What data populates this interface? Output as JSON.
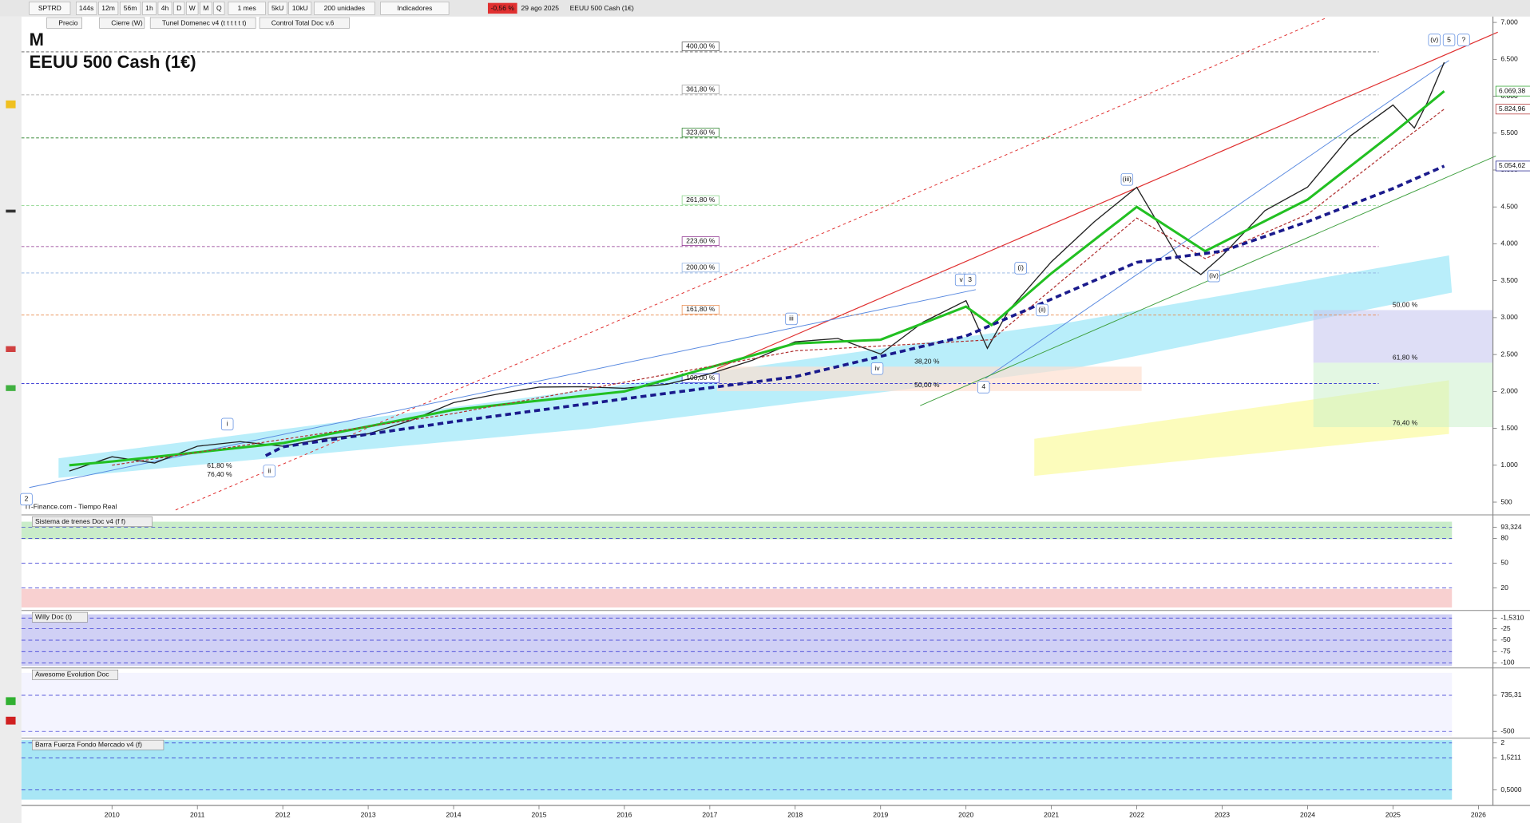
{
  "toolbar": {
    "symbol": "SPTRD",
    "timeframes": [
      "144s",
      "12m",
      "56m",
      "1h",
      "4h",
      "D",
      "W",
      "M",
      "Q"
    ],
    "period": "1 mes",
    "units": [
      "5kU",
      "10kU"
    ],
    "amount": "200 unidades",
    "indicators": "Indicadores",
    "change": "-0,56 %",
    "date": "29 ago 2025",
    "instrument": "EEUU 500 Cash (1€)"
  },
  "legend_bar": [
    "Precio",
    "Cierre (W)",
    "Tunel Domenec v4 (t t t t t t)",
    "Control Total Doc v.6"
  ],
  "chart_data": {
    "type": "line",
    "timeframe": "M",
    "title": "EEUU 500 Cash (1€)",
    "source": "IT-Finance.com - Tiempo Real",
    "series": [
      {
        "color": "#222222",
        "x": [
          2009.5,
          2010,
          2010.5,
          2011,
          2011.5,
          2012,
          2012.5,
          2013,
          2013.5,
          2014,
          2014.5,
          2015,
          2015.5,
          2016,
          2016.5,
          2017,
          2017.5,
          2018,
          2018.5,
          2019,
          2019.5,
          2020,
          2020.25,
          2020.5,
          2021,
          2021.5,
          2022,
          2022.5,
          2022.75,
          2023,
          2023.5,
          2024,
          2024.5,
          2025,
          2025.25,
          2025.4,
          2025.6
        ],
        "values": [
          920,
          1115,
          1030,
          1257,
          1320,
          1257,
          1362,
          1426,
          1606,
          1848,
          1960,
          2058,
          2063,
          2043,
          2098,
          2238,
          2423,
          2673,
          2718,
          2506,
          2941,
          3230,
          2584,
          3100,
          3756,
          4297,
          4766,
          3785,
          3585,
          3839,
          4450,
          4770,
          5460,
          5881,
          5569,
          5911,
          6460
        ]
      },
      {
        "color": "#22c022",
        "x": [
          2009.5,
          2010,
          2012,
          2014,
          2016,
          2018,
          2019,
          2020,
          2020.3,
          2021,
          2022,
          2022.8,
          2024,
          2025,
          2025.6
        ],
        "values": [
          1000,
          1050,
          1300,
          1750,
          2000,
          2650,
          2700,
          3150,
          2900,
          3600,
          4500,
          3900,
          4600,
          5500,
          6069
        ]
      },
      {
        "color": "#b03030",
        "x": [
          2010,
          2014,
          2018,
          2020.3,
          2022,
          2022.8,
          2024,
          2025,
          2025.6
        ],
        "values": [
          1000,
          1700,
          2550,
          2700,
          4350,
          3800,
          4400,
          5300,
          5825
        ]
      },
      {
        "color": "#1a1a8c",
        "x": [
          2011.8,
          2012,
          2014,
          2016,
          2018,
          2020,
          2022,
          2023,
          2024,
          2025,
          2025.6
        ],
        "values": [
          1130,
          1250,
          1590,
          1900,
          2200,
          2750,
          3750,
          3900,
          4300,
          4750,
          5054
        ]
      }
    ],
    "xlim": [
      2008.94,
      2026.17
    ],
    "xticks": [
      2010,
      2011,
      2012,
      2013,
      2014,
      2015,
      2016,
      2017,
      2018,
      2019,
      2020,
      2021,
      2022,
      2023,
      2024,
      2025,
      2026
    ],
    "ylim": [
      367,
      7066
    ],
    "yticks": [
      {
        "value": 7000,
        "label": "7.000"
      },
      {
        "value": 6500,
        "label": "6.500"
      },
      {
        "value": 6000,
        "label": "6.000"
      },
      {
        "value": 5500,
        "label": "5.500"
      },
      {
        "value": 5000,
        "label": "5.000"
      },
      {
        "value": 4500,
        "label": "4.500"
      },
      {
        "value": 4000,
        "label": "4.000"
      },
      {
        "value": 3500,
        "label": "3.500"
      },
      {
        "value": 3000,
        "label": "3.000"
      },
      {
        "value": 2500,
        "label": "2.500"
      },
      {
        "value": 2000,
        "label": "2.000"
      },
      {
        "value": 1500,
        "label": "1.500"
      },
      {
        "value": 1000,
        "label": "1.000"
      },
      500
    ],
    "price_labels": [
      {
        "value": 6069.38,
        "label": "6.069,38",
        "color": "#22a022"
      },
      {
        "value": 5824.96,
        "label": "5.824,96",
        "color": "#b03030"
      },
      {
        "value": 5054.62,
        "label": "5.054,62",
        "color": "#1a1a8c"
      }
    ],
    "fib_levels": [
      {
        "value": 6602,
        "label": "400,00 %",
        "color": "#555555"
      },
      {
        "value": 6018,
        "label": "361,80 %",
        "color": "#999999"
      },
      {
        "value": 5435,
        "label": "323,60 %",
        "color": "#1e7a1e"
      },
      {
        "value": 4520,
        "label": "261,80 %",
        "color": "#7ed07e"
      },
      {
        "value": 3963,
        "label": "223,60 %",
        "color": "#8a2a8a"
      },
      {
        "value": 3605,
        "label": "200,00 %",
        "color": "#8fb0e0"
      },
      {
        "value": 3035,
        "label": "161,80 %",
        "color": "#e8894a"
      },
      {
        "value": 2107,
        "label": "100,00 %",
        "color": "#2a2ad0"
      }
    ],
    "retracements": [
      "50,00 %",
      "61,80 %",
      "76,40 %",
      "38,20 %",
      "50,00 %",
      "61,80 %",
      "76,40 %"
    ],
    "waves": [
      "(v)",
      "5",
      "?",
      "(iii)",
      "iii",
      "(i)",
      "(ii)",
      "v",
      "3",
      "4",
      "(iv)",
      "i",
      "ii",
      "iv",
      "2"
    ]
  },
  "panels": [
    {
      "title": "Sistema de trenes Doc v4 (f f)",
      "ylim": [
        -6,
        106
      ],
      "ticks": [
        {
          "value": 93.324,
          "label": "93,324"
        },
        80,
        50,
        20
      ]
    },
    {
      "title": "Willy Doc (t)",
      "ylim": [
        -111,
        11
      ],
      "ticks": [
        {
          "value": -1.531,
          "label": "-1,5310"
        },
        -25,
        -50,
        -75,
        -100
      ]
    },
    {
      "title": "Awesome Evolution Doc",
      "ylim": [
        -733,
        1603
      ],
      "ticks": [
        {
          "value": 735.31,
          "label": "735,31"
        },
        -500
      ]
    },
    {
      "title": "Barra Fuerza Fondo Mercado v4 (f)",
      "ylim": [
        0.19,
        2.09
      ],
      "ticks": [
        2,
        {
          "value": 1.5211,
          "label": "1,5211"
        },
        {
          "value": 0.5,
          "label": "0,5000"
        }
      ]
    }
  ]
}
